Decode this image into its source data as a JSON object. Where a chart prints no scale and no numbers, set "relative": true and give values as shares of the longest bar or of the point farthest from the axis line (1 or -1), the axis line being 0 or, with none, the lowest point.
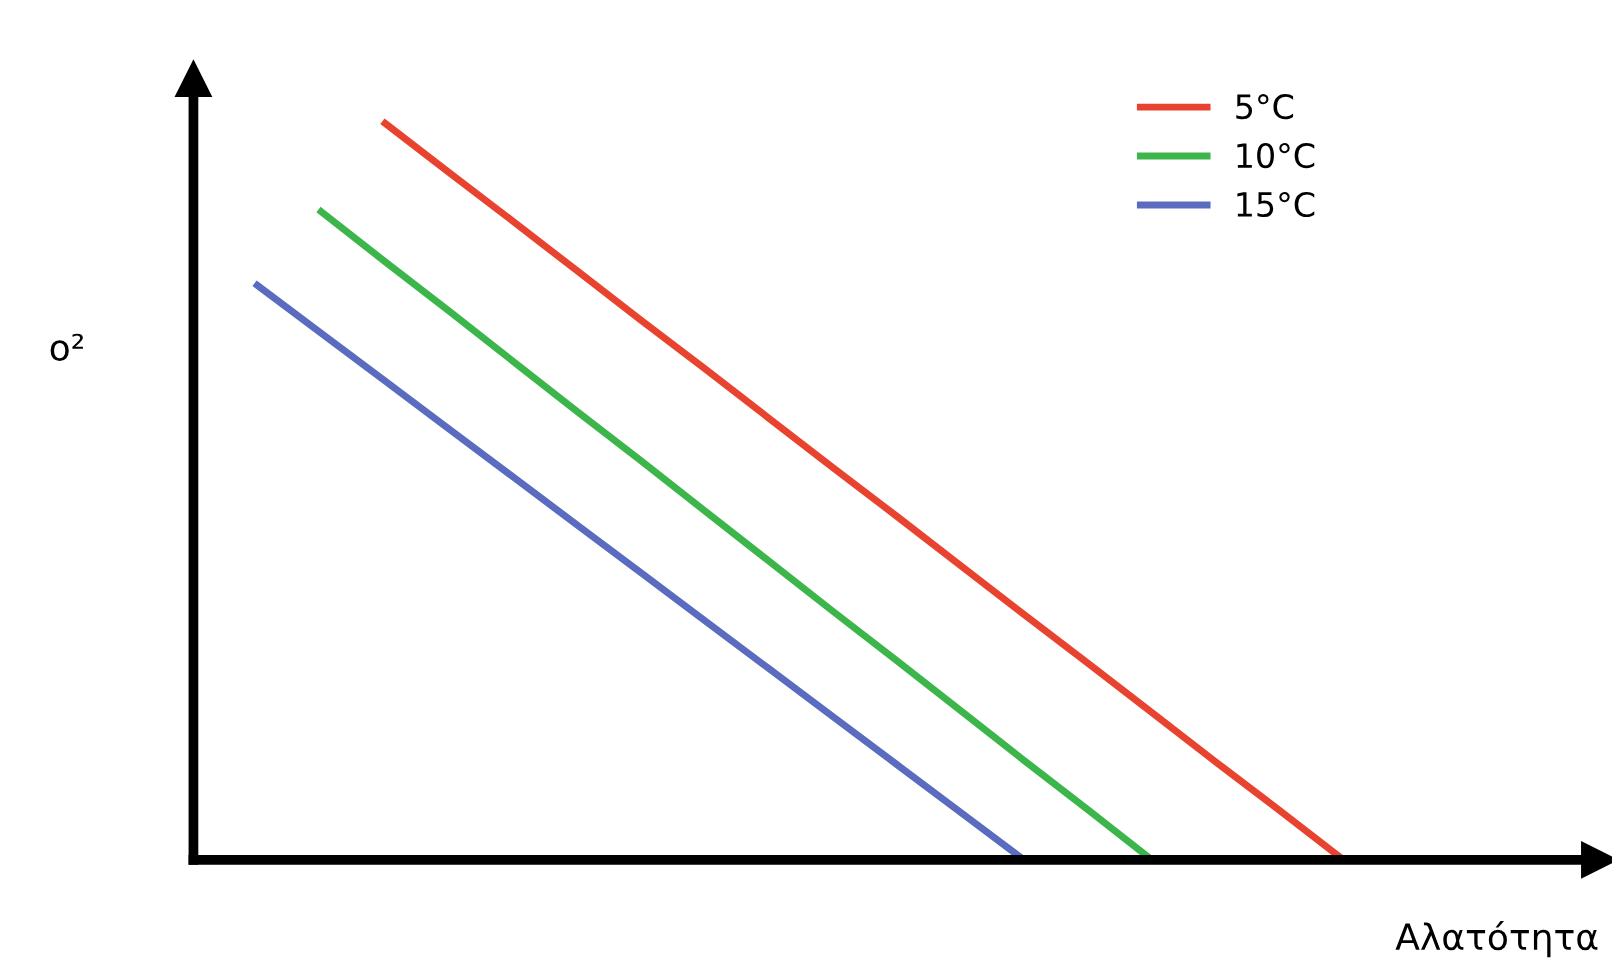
{
  "chart_data": {
    "type": "line",
    "relative": true,
    "xlabel": "Αλατότητα",
    "ylabel": "o²",
    "tick_labels": false,
    "legend": "top right",
    "marker": "none",
    "line_style": "solid",
    "categories": [
      null,
      null,
      null,
      null,
      null,
      null,
      null,
      null,
      null,
      null,
      null,
      null,
      null,
      null,
      null,
      null,
      null,
      null,
      null,
      null,
      null,
      null,
      null
    ],
    "series": [
      {
        "name": "5°C",
        "color": "#e8432e",
        "values": [
          null,
          null,
          null,
          1,
          0.933,
          0.867,
          0.8,
          0.733,
          0.667,
          0.6,
          0.533,
          0.467,
          0.4,
          0.333,
          0.267,
          0.2,
          0.133,
          0.067,
          0,
          null,
          null,
          null,
          null
        ]
      },
      {
        "name": "10°C",
        "color": "#3cb54a",
        "values": [
          null,
          null,
          0.88,
          0.812,
          0.745,
          0.677,
          0.609,
          0.542,
          0.474,
          0.406,
          0.338,
          0.271,
          0.203,
          0.135,
          0.068,
          0,
          null,
          null,
          null,
          null,
          null,
          null,
          null
        ]
      },
      {
        "name": "15°C",
        "color": "#5b6bbf",
        "values": [
          null,
          0.78,
          0.715,
          0.65,
          0.585,
          0.52,
          0.455,
          0.39,
          0.325,
          0.26,
          0.195,
          0.13,
          0.065,
          0,
          null,
          null,
          null,
          null,
          null,
          null,
          null,
          null,
          null
        ]
      }
    ]
  }
}
